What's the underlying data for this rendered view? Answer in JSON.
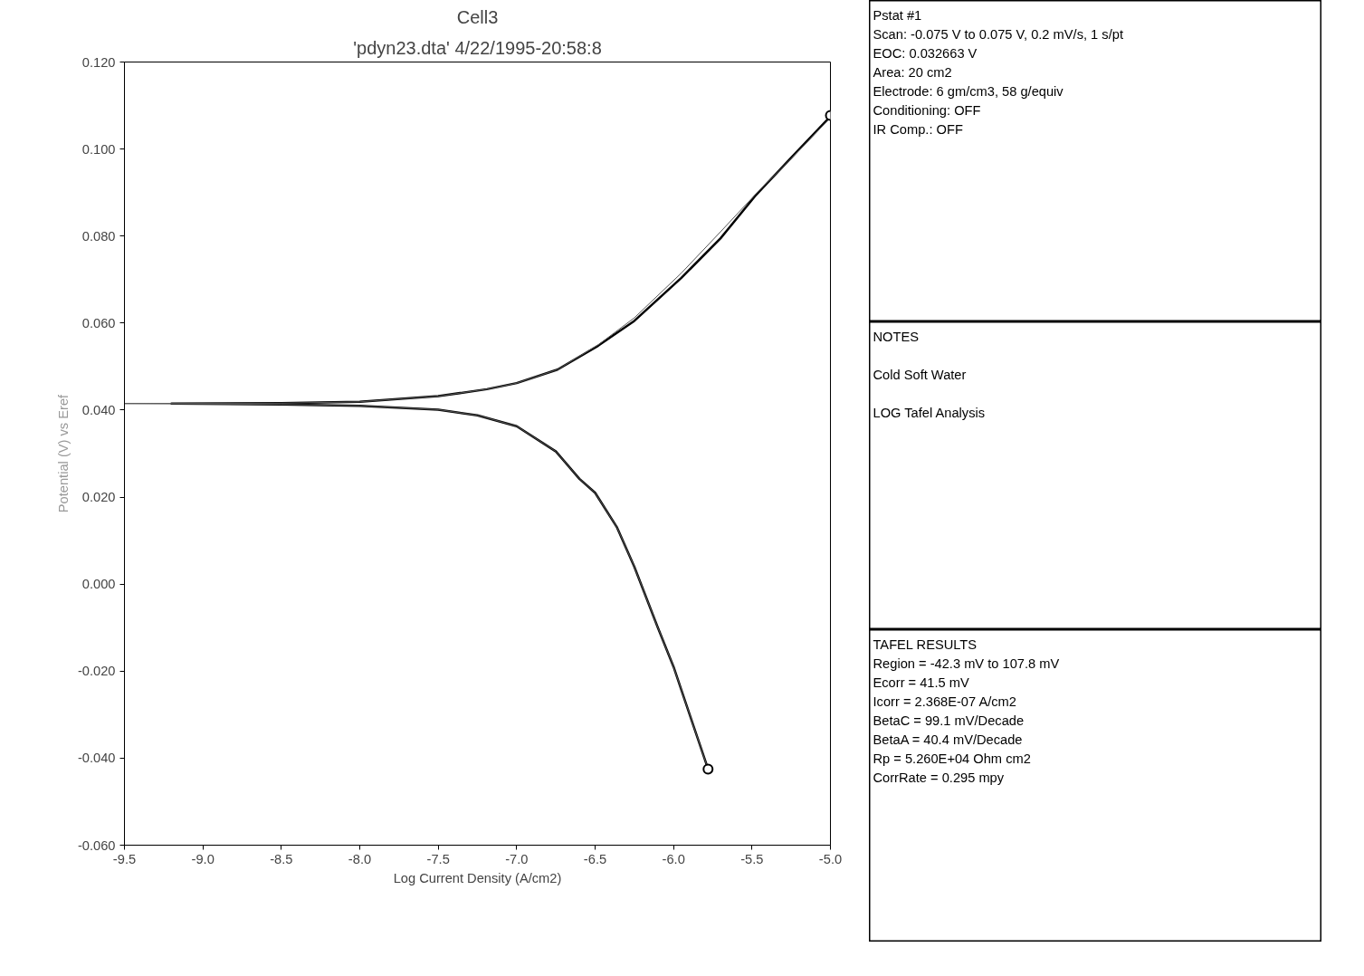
{
  "chart_data": [
    {
      "type": "line",
      "title": "Cell3",
      "subtitle": "'pdyn23.dta' 4/22/1995-20:58:8",
      "xlabel": "Log Current Density (A/cm2)",
      "ylabel": "Potential (V) vs Eref",
      "xlim": [
        -9.5,
        -5.0
      ],
      "ylim": [
        -0.06,
        0.12
      ],
      "xticks": [
        {
          "value": -9.5,
          "label": "-9.5"
        },
        {
          "value": -9.0,
          "label": "-9.0"
        },
        {
          "value": -8.5,
          "label": "-8.5"
        },
        {
          "value": -8.0,
          "label": "-8.0"
        },
        {
          "value": -7.5,
          "label": "-7.5"
        },
        {
          "value": -7.0,
          "label": "-7.0"
        },
        {
          "value": -6.5,
          "label": "-6.5"
        },
        {
          "value": -6.0,
          "label": "-6.0"
        },
        {
          "value": -5.5,
          "label": "-5.5"
        },
        {
          "value": -5.0,
          "label": "-5.0"
        }
      ],
      "yticks": [
        {
          "value": -0.06,
          "label": "-0.060"
        },
        {
          "value": -0.04,
          "label": "-0.040"
        },
        {
          "value": -0.02,
          "label": "-0.020"
        },
        {
          "value": 0,
          "label": "0.000"
        },
        {
          "value": 0.02,
          "label": "0.020"
        },
        {
          "value": 0.04,
          "label": "0.040"
        },
        {
          "value": 0.06,
          "label": "0.060"
        },
        {
          "value": 0.08,
          "label": "0.080"
        },
        {
          "value": 0.1,
          "label": "0.100"
        },
        {
          "value": 0.12,
          "label": "0.120"
        }
      ],
      "grid": false,
      "series": [
        {
          "type": "line",
          "color": "#000000",
          "x": [
            -5.78,
            -5.9,
            -6.0,
            -6.1,
            -6.25,
            -6.36,
            -6.5,
            -6.6,
            -6.75,
            -7.0,
            -7.25,
            -7.5,
            -8.0,
            -8.5,
            -9.2,
            -8.5,
            -8.0,
            -7.5,
            -7.19,
            -7.0,
            -6.74,
            -6.48,
            -6.25,
            -5.95,
            -5.7,
            -5.48,
            -5.25,
            -5.0
          ],
          "values": [
            -0.0425,
            -0.0297,
            -0.019,
            -0.01,
            0.004,
            0.013,
            0.021,
            0.0242,
            0.0305,
            0.0363,
            0.0388,
            0.0401,
            0.041,
            0.0413,
            0.0415,
            0.0416,
            0.0419,
            0.0432,
            0.0448,
            0.0462,
            0.0493,
            0.0548,
            0.0605,
            0.0704,
            0.0795,
            0.0892,
            0.098,
            0.1075
          ]
        },
        {
          "type": "line",
          "color": "#555555",
          "x": [
            -5.78,
            -5.9,
            -6.0,
            -6.1,
            -6.25,
            -6.36,
            -6.5,
            -6.6,
            -6.75,
            -7.0,
            -7.25,
            -7.5,
            -8.0,
            -8.5,
            -9.5,
            -8.5,
            -8.0,
            -7.5,
            -7.19,
            -7.0,
            -6.74,
            -6.48,
            -6.25,
            -5.95,
            -5.7,
            -5.48,
            -5.25,
            -5.0
          ],
          "values": [
            -0.0425,
            -0.0297,
            -0.019,
            -0.01,
            0.004,
            0.013,
            0.021,
            0.0242,
            0.0305,
            0.0363,
            0.0388,
            0.0401,
            0.041,
            0.0413,
            0.0415,
            0.0416,
            0.0419,
            0.0432,
            0.0448,
            0.0462,
            0.0493,
            0.055,
            0.0612,
            0.0715,
            0.081,
            0.0895,
            0.0978,
            0.1072
          ]
        },
        {
          "type": "scatter",
          "marker": "circle",
          "color": "#000000",
          "x": [
            -5.78,
            -5.0
          ],
          "values": [
            -0.0425,
            0.1077
          ]
        }
      ]
    },
    {
      "type": "other",
      "title": "Pstat #1",
      "annotations": [
        "Scan: -0.075 V to 0.075 V, 0.2 mV/s, 1 s/pt",
        "EOC: 0.032663 V",
        "Area: 20 cm2",
        "Electrode: 6 gm/cm3, 58 g/equiv",
        "Conditioning: OFF",
        "IR Comp.: OFF"
      ]
    },
    {
      "type": "other",
      "title": "NOTES",
      "annotations": [
        "Cold Soft Water",
        "LOG Tafel Analysis"
      ]
    },
    {
      "type": "other",
      "title": "TAFEL RESULTS",
      "annotations": [
        "Region = -42.3 mV to 107.8 mV",
        "Ecorr = 41.5 mV",
        "Icorr = 2.368E-07 A/cm2",
        "BetaC = 99.1 mV/Decade",
        "BetaA = 40.4 mV/Decade",
        "Rp = 5.260E+04 Ohm cm2",
        "CorrRate = 0.295 mpy"
      ]
    }
  ]
}
